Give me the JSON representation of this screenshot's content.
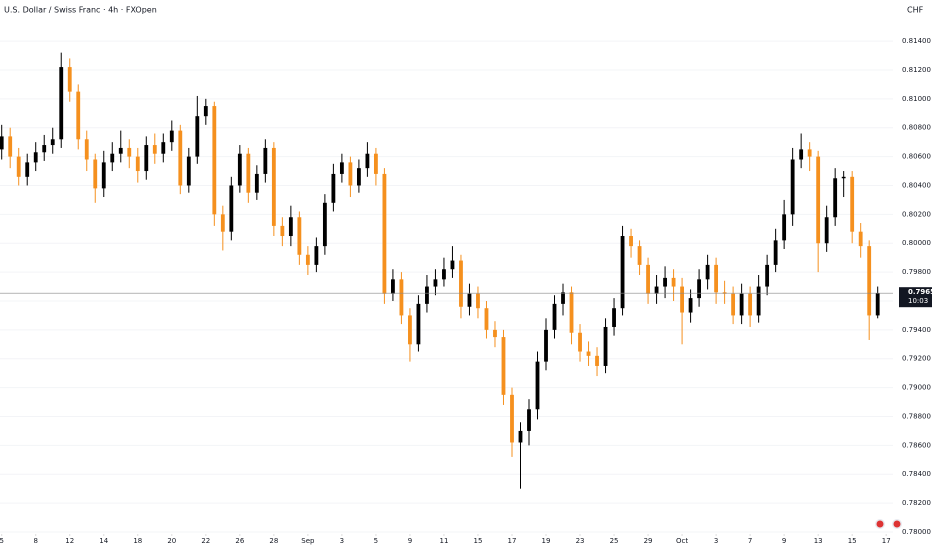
{
  "chart_data": {
    "type": "candlestick",
    "title": "U.S. Dollar / Swiss Franc · 4h · FXOpen",
    "currency": "CHF",
    "up_color": "#000000",
    "down_color": "#f5901e",
    "open": [
      0.8065,
      0.8074,
      0.806,
      0.8046,
      0.8056,
      0.8063,
      0.8068,
      0.8072,
      0.8122,
      0.8105,
      0.8072,
      0.8058,
      0.8038,
      0.8056,
      0.8062,
      0.8066,
      0.806,
      0.805,
      0.8068,
      0.8062,
      0.807,
      0.8078,
      0.804,
      0.806,
      0.8088,
      0.8095,
      0.802,
      0.8008,
      0.804,
      0.8062,
      0.8035,
      0.8048,
      0.8066,
      0.8012,
      0.8005,
      0.8018,
      0.7992,
      0.7985,
      0.7998,
      0.8028,
      0.8048,
      0.8056,
      0.804,
      0.8052,
      0.8062,
      0.8048,
      0.7965,
      0.7975,
      0.795,
      0.793,
      0.7958,
      0.797,
      0.7975,
      0.7982,
      0.7988,
      0.7956,
      0.7965,
      0.7955,
      0.794,
      0.7935,
      0.7895,
      0.7862,
      0.787,
      0.7885,
      0.7918,
      0.794,
      0.7958,
      0.7966,
      0.7938,
      0.7925,
      0.7922,
      0.7915,
      0.7942,
      0.7955,
      0.8005,
      0.7998,
      0.7985,
      0.7965,
      0.797,
      0.7976,
      0.797,
      0.7952,
      0.7962,
      0.7975,
      0.7985,
      0.7966,
      0.7965,
      0.795,
      0.7965,
      0.795,
      0.797,
      0.7985,
      0.8002,
      0.802,
      0.8058,
      0.8065,
      0.806,
      0.8,
      0.8018,
      0.8045,
      0.8046,
      0.8008,
      0.7998,
      0.795
    ],
    "high": [
      0.8082,
      0.808,
      0.8066,
      0.8062,
      0.807,
      0.8075,
      0.808,
      0.8132,
      0.8128,
      0.811,
      0.8078,
      0.8062,
      0.8064,
      0.807,
      0.8078,
      0.8072,
      0.8066,
      0.8074,
      0.8076,
      0.8076,
      0.8085,
      0.8082,
      0.8066,
      0.8102,
      0.81,
      0.8098,
      0.8026,
      0.8046,
      0.8068,
      0.8066,
      0.8054,
      0.8072,
      0.807,
      0.8018,
      0.8026,
      0.8022,
      0.7998,
      0.8004,
      0.8034,
      0.8055,
      0.8062,
      0.806,
      0.8058,
      0.807,
      0.8066,
      0.8052,
      0.7982,
      0.798,
      0.7955,
      0.7964,
      0.7978,
      0.7982,
      0.799,
      0.7998,
      0.7992,
      0.7972,
      0.797,
      0.796,
      0.7946,
      0.794,
      0.79,
      0.7876,
      0.7892,
      0.7925,
      0.7948,
      0.7964,
      0.7972,
      0.797,
      0.7944,
      0.7932,
      0.7928,
      0.7948,
      0.7962,
      0.8012,
      0.801,
      0.8002,
      0.799,
      0.7978,
      0.7984,
      0.7982,
      0.7976,
      0.7968,
      0.7982,
      0.7992,
      0.799,
      0.7974,
      0.797,
      0.7972,
      0.797,
      0.7978,
      0.7992,
      0.801,
      0.803,
      0.8066,
      0.8076,
      0.807,
      0.8064,
      0.8026,
      0.8052,
      0.805,
      0.805,
      0.8014,
      0.8002,
      0.797
    ],
    "low": [
      0.8058,
      0.8052,
      0.804,
      0.804,
      0.805,
      0.8057,
      0.8062,
      0.8066,
      0.8098,
      0.8065,
      0.805,
      0.8028,
      0.8032,
      0.805,
      0.8056,
      0.8052,
      0.8042,
      0.8044,
      0.8055,
      0.8056,
      0.8064,
      0.8034,
      0.8035,
      0.8055,
      0.8082,
      0.8012,
      0.7995,
      0.8002,
      0.8035,
      0.8028,
      0.803,
      0.8042,
      0.8005,
      0.7998,
      0.7998,
      0.7985,
      0.7978,
      0.798,
      0.7992,
      0.8022,
      0.8042,
      0.8032,
      0.8035,
      0.8046,
      0.804,
      0.7958,
      0.796,
      0.7944,
      0.7918,
      0.7925,
      0.7952,
      0.7964,
      0.797,
      0.7976,
      0.7948,
      0.795,
      0.7948,
      0.7934,
      0.7928,
      0.7888,
      0.7852,
      0.783,
      0.786,
      0.7878,
      0.7912,
      0.7934,
      0.795,
      0.793,
      0.7918,
      0.7915,
      0.7908,
      0.791,
      0.7936,
      0.795,
      0.799,
      0.7978,
      0.7958,
      0.7958,
      0.7962,
      0.796,
      0.793,
      0.7945,
      0.7956,
      0.7968,
      0.7958,
      0.7958,
      0.7944,
      0.7944,
      0.7942,
      0.7945,
      0.7964,
      0.798,
      0.7996,
      0.8012,
      0.8052,
      0.805,
      0.798,
      0.7994,
      0.8012,
      0.8032,
      0.8,
      0.799,
      0.7933,
      0.7948
    ],
    "close": [
      0.8074,
      0.806,
      0.8046,
      0.8056,
      0.8063,
      0.8068,
      0.8072,
      0.8122,
      0.8105,
      0.8072,
      0.8058,
      0.8038,
      0.8056,
      0.8062,
      0.8066,
      0.806,
      0.805,
      0.8068,
      0.8062,
      0.807,
      0.8078,
      0.804,
      0.806,
      0.8088,
      0.8095,
      0.802,
      0.8008,
      0.804,
      0.8062,
      0.8035,
      0.8048,
      0.8066,
      0.8012,
      0.8005,
      0.8018,
      0.7992,
      0.7985,
      0.7998,
      0.8028,
      0.8048,
      0.8056,
      0.804,
      0.8052,
      0.8062,
      0.8048,
      0.7965,
      0.7975,
      0.795,
      0.793,
      0.7958,
      0.797,
      0.7975,
      0.7982,
      0.7988,
      0.7956,
      0.7965,
      0.7955,
      0.794,
      0.7935,
      0.7895,
      0.7862,
      0.787,
      0.7885,
      0.7918,
      0.794,
      0.7958,
      0.7966,
      0.7938,
      0.7925,
      0.7922,
      0.7915,
      0.7942,
      0.7955,
      0.8005,
      0.7998,
      0.7985,
      0.7965,
      0.797,
      0.7976,
      0.797,
      0.7952,
      0.7962,
      0.7975,
      0.7985,
      0.7966,
      0.7965,
      0.795,
      0.7965,
      0.795,
      0.797,
      0.7985,
      0.8002,
      0.802,
      0.8058,
      0.8065,
      0.806,
      0.8,
      0.8018,
      0.8045,
      0.8046,
      0.8008,
      0.7998,
      0.795,
      0.79654
    ],
    "last_price": 0.79654,
    "countdown": "10:03",
    "xlim": [
      -0.2,
      104.8
    ],
    "xticks": [
      {
        "value": 0,
        "label": "5"
      },
      {
        "value": 4,
        "label": "8"
      },
      {
        "value": 8,
        "label": "12"
      },
      {
        "value": 12,
        "label": "14"
      },
      {
        "value": 16,
        "label": "18"
      },
      {
        "value": 20,
        "label": "20"
      },
      {
        "value": 24,
        "label": "22"
      },
      {
        "value": 28,
        "label": "26"
      },
      {
        "value": 32,
        "label": "28"
      },
      {
        "value": 36,
        "label": "Sep"
      },
      {
        "value": 40,
        "label": "3"
      },
      {
        "value": 44,
        "label": "5"
      },
      {
        "value": 48,
        "label": "9"
      },
      {
        "value": 52,
        "label": "11"
      },
      {
        "value": 56,
        "label": "15"
      },
      {
        "value": 60,
        "label": "17"
      },
      {
        "value": 64,
        "label": "19"
      },
      {
        "value": 68,
        "label": "23"
      },
      {
        "value": 72,
        "label": "25"
      },
      {
        "value": 76,
        "label": "29"
      },
      {
        "value": 80,
        "label": "Oct"
      },
      {
        "value": 84,
        "label": "3"
      },
      {
        "value": 88,
        "label": "7"
      },
      {
        "value": 92,
        "label": "9"
      },
      {
        "value": 96,
        "label": "13"
      },
      {
        "value": 100,
        "label": "15"
      },
      {
        "value": 104,
        "label": "17"
      }
    ],
    "ylim": [
      0.78,
      0.8165
    ],
    "yticks": [
      {
        "value": 0.78,
        "label": "0.78000"
      },
      {
        "value": 0.782,
        "label": "0.78200"
      },
      {
        "value": 0.784,
        "label": "0.78400"
      },
      {
        "value": 0.786,
        "label": "0.78600"
      },
      {
        "value": 0.788,
        "label": "0.78800"
      },
      {
        "value": 0.79,
        "label": "0.79000"
      },
      {
        "value": 0.792,
        "label": "0.79200"
      },
      {
        "value": 0.794,
        "label": "0.79400"
      },
      {
        "value": 0.796,
        "label": "0.79600"
      },
      {
        "value": 0.798,
        "label": "0.79800"
      },
      {
        "value": 0.8,
        "label": "0.80000"
      },
      {
        "value": 0.802,
        "label": "0.80200"
      },
      {
        "value": 0.804,
        "label": "0.80400"
      },
      {
        "value": 0.806,
        "label": "0.80600"
      },
      {
        "value": 0.808,
        "label": "0.80800"
      },
      {
        "value": 0.81,
        "label": "0.81000"
      },
      {
        "value": 0.812,
        "label": "0.81200"
      },
      {
        "value": 0.814,
        "label": "0.81400"
      }
    ],
    "grid": true
  }
}
